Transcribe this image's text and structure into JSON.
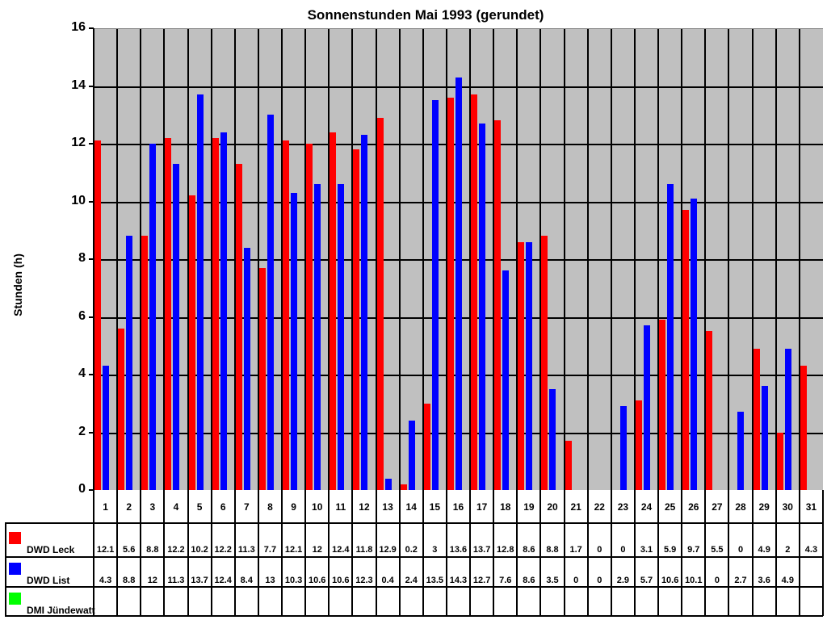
{
  "chart_data": {
    "type": "bar",
    "title": "Sonnenstunden Mai 1993 (gerundet)",
    "xlabel": "",
    "ylabel": "Stunden (h)",
    "ylim": [
      0,
      16
    ],
    "yticks": [
      0,
      2,
      4,
      6,
      8,
      10,
      12,
      14,
      16
    ],
    "grid": true,
    "legend_position": "data-table-left",
    "categories": [
      "1",
      "2",
      "3",
      "4",
      "5",
      "6",
      "7",
      "8",
      "9",
      "10",
      "11",
      "12",
      "13",
      "14",
      "15",
      "16",
      "17",
      "18",
      "19",
      "20",
      "21",
      "22",
      "23",
      "24",
      "25",
      "26",
      "27",
      "28",
      "29",
      "30",
      "31"
    ],
    "series": [
      {
        "name": "DWD Leck",
        "color": "#ff0000",
        "values": [
          12.1,
          5.6,
          8.8,
          12.2,
          10.2,
          12.2,
          11.3,
          7.7,
          12.1,
          12,
          12.4,
          11.8,
          12.9,
          0.2,
          3,
          13.6,
          13.7,
          12.8,
          8.6,
          8.8,
          1.7,
          0,
          0,
          3.1,
          5.9,
          9.7,
          5.5,
          0,
          4.9,
          2,
          4.3
        ]
      },
      {
        "name": "DWD List",
        "color": "#0000ff",
        "values": [
          4.3,
          8.8,
          12,
          11.3,
          13.7,
          12.4,
          8.4,
          13,
          10.3,
          10.6,
          10.6,
          12.3,
          0.4,
          2.4,
          13.5,
          14.3,
          12.7,
          7.6,
          8.6,
          3.5,
          0,
          0,
          2.9,
          5.7,
          10.6,
          10.1,
          0,
          2.7,
          3.6,
          4.9,
          null
        ]
      },
      {
        "name": "DMI Jündewatt",
        "color": "#00ff00",
        "values": [
          null,
          null,
          null,
          null,
          null,
          null,
          null,
          null,
          null,
          null,
          null,
          null,
          null,
          null,
          null,
          null,
          null,
          null,
          null,
          null,
          null,
          null,
          null,
          null,
          null,
          null,
          null,
          null,
          null,
          null,
          null
        ]
      }
    ]
  },
  "table_labels": {
    "leck": "DWD Leck",
    "list": "DWD List",
    "dmi": "DMI Jündewatt"
  },
  "style": {
    "plot_bg": "#c0c0c0"
  }
}
